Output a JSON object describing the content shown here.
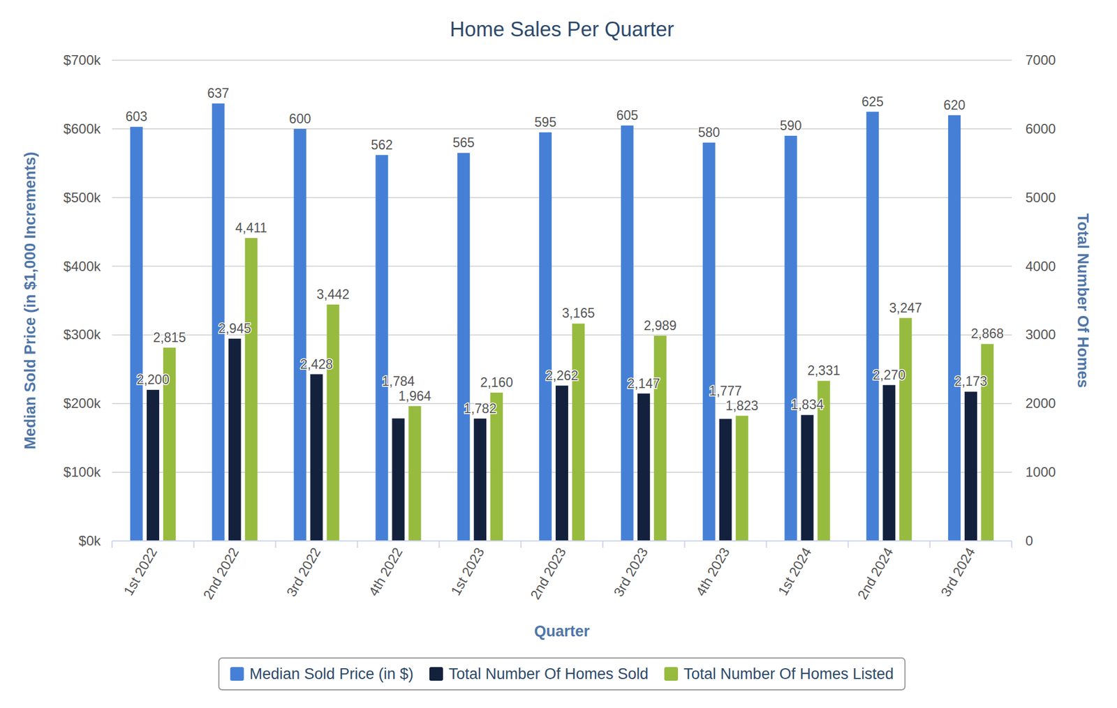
{
  "chart_data": {
    "type": "bar",
    "title": "Home Sales Per Quarter",
    "x_label": "Quarter",
    "y_label": "Median Sold Price (in $1,000 Increments)",
    "y2_label": "Total Number Of Homes",
    "categories": [
      "1st 2022",
      "2nd 2022",
      "3rd 2022",
      "4th 2022",
      "1st 2023",
      "2nd 2023",
      "3rd 2023",
      "4th 2023",
      "1st 2024",
      "2nd 2024",
      "3rd 2024"
    ],
    "series": [
      {
        "name": "Median Sold Price (in $)",
        "color": "#4680d6",
        "values": [
          603,
          637,
          600,
          562,
          565,
          595,
          605,
          580,
          590,
          625,
          620
        ]
      },
      {
        "name": "Total Number Of Homes Sold",
        "color": "#14213d",
        "axis": "y2",
        "values": [
          2200,
          2945,
          2428,
          1784,
          1782,
          2262,
          2147,
          1777,
          1834,
          2270,
          2173
        ],
        "value_labels": [
          "2,200",
          "2,945",
          "2,428",
          "1,784",
          "1,782",
          "2,262",
          "2,147",
          "1,777",
          "1,834",
          "2,270",
          "2,173"
        ]
      },
      {
        "name": "Total Number Of Homes Listed",
        "color": "#97bb3f",
        "axis": "y2",
        "values": [
          2815,
          4411,
          3442,
          1964,
          2160,
          3165,
          2989,
          1823,
          2331,
          3247,
          2868
        ],
        "value_labels": [
          "2,815",
          "4,411",
          "3,442",
          "1,964",
          "2,160",
          "3,165",
          "2,989",
          "1,823",
          "2,331",
          "3,247",
          "2,868"
        ]
      }
    ],
    "ylim": [
      0,
      700
    ],
    "yticks": [
      {
        "value": 0,
        "label": "$0k"
      },
      {
        "value": 100,
        "label": "$100k"
      },
      {
        "value": 200,
        "label": "$200k"
      },
      {
        "value": 300,
        "label": "$300k"
      },
      {
        "value": 400,
        "label": "$400k"
      },
      {
        "value": 500,
        "label": "$500k"
      },
      {
        "value": 600,
        "label": "$600k"
      },
      {
        "value": 700,
        "label": "$700k"
      }
    ],
    "y2lim": [
      0,
      7000
    ],
    "y2ticks": [
      0,
      1000,
      2000,
      3000,
      4000,
      5000,
      6000,
      7000
    ],
    "grid": true,
    "data_labels": true,
    "legend": "bottom"
  }
}
